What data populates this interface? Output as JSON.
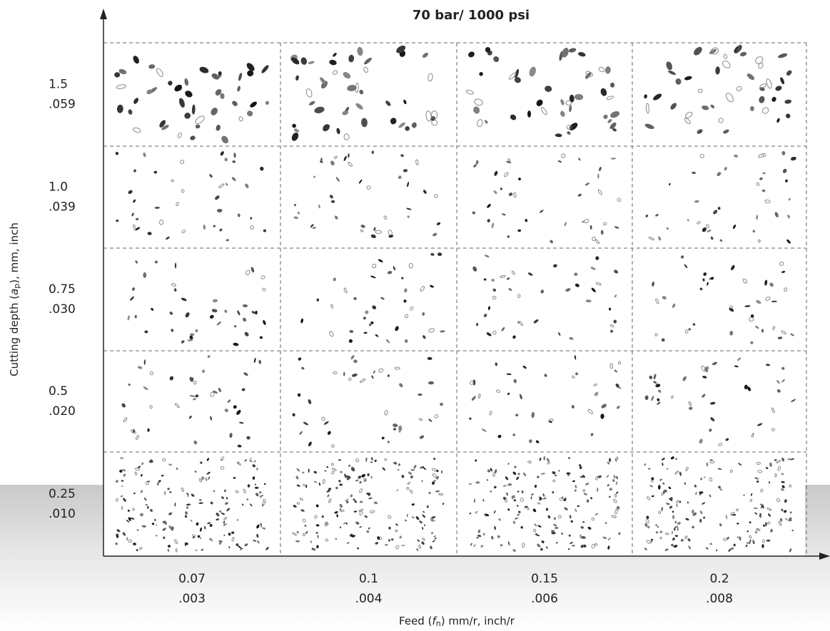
{
  "title": "70 bar/ 1000 psi",
  "y_axis": {
    "label_parts": [
      "Cutting depth (",
      "a",
      "p",
      "), mm, inch"
    ]
  },
  "x_axis": {
    "label_parts": [
      "Feed (",
      "f",
      "n",
      ") mm/r, inch/r"
    ]
  },
  "rows": [
    {
      "metric": "1.5",
      "inch": ".059"
    },
    {
      "metric": "1.0",
      "inch": ".039"
    },
    {
      "metric": "0.75",
      "inch": ".030"
    },
    {
      "metric": "0.5",
      "inch": ".020"
    },
    {
      "metric": "0.25",
      "inch": ".010"
    }
  ],
  "columns": [
    {
      "metric": "0.07",
      "inch": ".003"
    },
    {
      "metric": "0.1",
      "inch": ".004"
    },
    {
      "metric": "0.15",
      "inch": ".006"
    },
    {
      "metric": "0.2",
      "inch": ".008"
    }
  ]
}
